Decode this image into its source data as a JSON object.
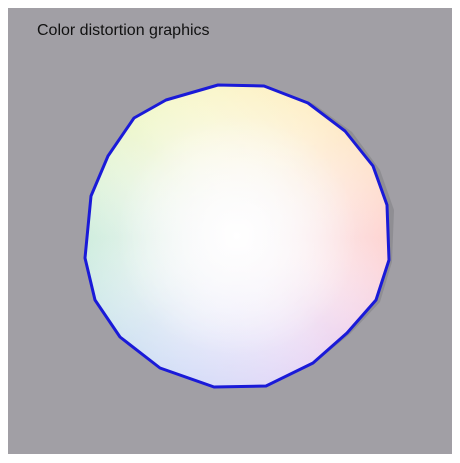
{
  "window": {
    "title": "Color distortion graphics"
  },
  "graphic": {
    "name": "color-wheel",
    "outline_color": "#1a1ad8",
    "background_color": "#a19fa5",
    "shadow_color": "#8f8e93"
  }
}
